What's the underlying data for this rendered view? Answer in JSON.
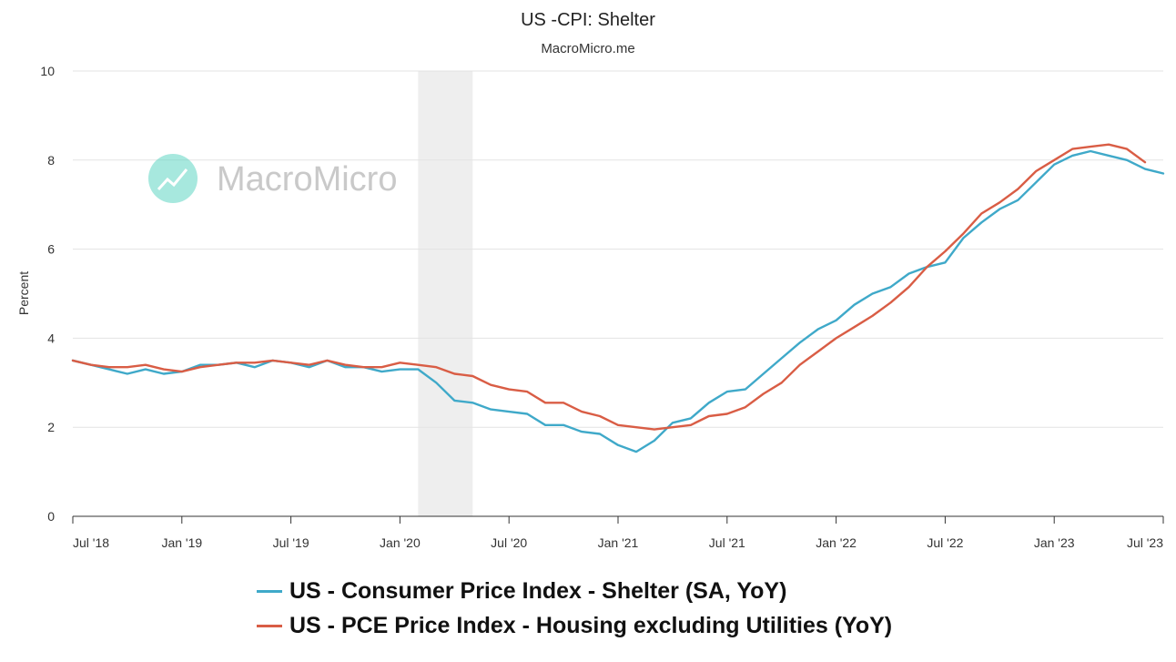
{
  "header": {
    "title": "US -CPI: Shelter",
    "subtitle": "MacroMicro.me"
  },
  "watermark": {
    "text": "MacroMicro",
    "icon": "chart-line-icon",
    "color": "#c9c9c9",
    "icon_color": "#5ed6c2"
  },
  "chart_data": {
    "type": "line",
    "title": "US -CPI: Shelter",
    "subtitle": "MacroMicro.me",
    "xlabel": "",
    "ylabel": "Percent",
    "ylim": [
      0,
      10
    ],
    "yticks": [
      0,
      2,
      4,
      6,
      8,
      10
    ],
    "xlim": [
      "2018-07",
      "2023-07"
    ],
    "xticks": [
      {
        "date": "2018-07",
        "label": "Jul '18"
      },
      {
        "date": "2019-01",
        "label": "Jan '19"
      },
      {
        "date": "2019-07",
        "label": "Jul '19"
      },
      {
        "date": "2020-01",
        "label": "Jan '20"
      },
      {
        "date": "2020-07",
        "label": "Jul '20"
      },
      {
        "date": "2021-01",
        "label": "Jan '21"
      },
      {
        "date": "2021-07",
        "label": "Jul '21"
      },
      {
        "date": "2022-01",
        "label": "Jan '22"
      },
      {
        "date": "2022-07",
        "label": "Jul '22"
      },
      {
        "date": "2023-01",
        "label": "Jan '23"
      },
      {
        "date": "2023-07",
        "label": "Jul '23"
      }
    ],
    "grid": true,
    "legend_position": "bottom",
    "shaded_ranges": [
      {
        "start": "2020-02",
        "end": "2020-05",
        "color": "#eeeeee"
      }
    ],
    "series": [
      {
        "name": "US - Consumer Price Index - Shelter (SA, YoY)",
        "color": "#3fa9c9",
        "x": [
          "2018-07",
          "2018-08",
          "2018-09",
          "2018-10",
          "2018-11",
          "2018-12",
          "2019-01",
          "2019-02",
          "2019-03",
          "2019-04",
          "2019-05",
          "2019-06",
          "2019-07",
          "2019-08",
          "2019-09",
          "2019-10",
          "2019-11",
          "2019-12",
          "2020-01",
          "2020-02",
          "2020-03",
          "2020-04",
          "2020-05",
          "2020-06",
          "2020-07",
          "2020-08",
          "2020-09",
          "2020-10",
          "2020-11",
          "2020-12",
          "2021-01",
          "2021-02",
          "2021-03",
          "2021-04",
          "2021-05",
          "2021-06",
          "2021-07",
          "2021-08",
          "2021-09",
          "2021-10",
          "2021-11",
          "2021-12",
          "2022-01",
          "2022-02",
          "2022-03",
          "2022-04",
          "2022-05",
          "2022-06",
          "2022-07",
          "2022-08",
          "2022-09",
          "2022-10",
          "2022-11",
          "2022-12",
          "2023-01",
          "2023-02",
          "2023-03",
          "2023-04",
          "2023-05",
          "2023-06",
          "2023-07"
        ],
        "values": [
          3.5,
          3.4,
          3.3,
          3.2,
          3.3,
          3.2,
          3.25,
          3.4,
          3.4,
          3.45,
          3.35,
          3.5,
          3.45,
          3.35,
          3.5,
          3.35,
          3.35,
          3.25,
          3.3,
          3.3,
          3.0,
          2.6,
          2.55,
          2.4,
          2.35,
          2.3,
          2.05,
          2.05,
          1.9,
          1.85,
          1.6,
          1.45,
          1.7,
          2.1,
          2.2,
          2.55,
          2.8,
          2.85,
          3.2,
          3.55,
          3.9,
          4.2,
          4.4,
          4.75,
          5.0,
          5.15,
          5.45,
          5.6,
          5.7,
          6.25,
          6.6,
          6.9,
          7.1,
          7.5,
          7.9,
          8.1,
          8.2,
          8.1,
          8.0,
          7.8,
          7.7
        ]
      },
      {
        "name": "US - PCE Price Index - Housing excluding Utilities (YoY)",
        "color": "#d95d45",
        "x": [
          "2018-07",
          "2018-08",
          "2018-09",
          "2018-10",
          "2018-11",
          "2018-12",
          "2019-01",
          "2019-02",
          "2019-03",
          "2019-04",
          "2019-05",
          "2019-06",
          "2019-07",
          "2019-08",
          "2019-09",
          "2019-10",
          "2019-11",
          "2019-12",
          "2020-01",
          "2020-02",
          "2020-03",
          "2020-04",
          "2020-05",
          "2020-06",
          "2020-07",
          "2020-08",
          "2020-09",
          "2020-10",
          "2020-11",
          "2020-12",
          "2021-01",
          "2021-02",
          "2021-03",
          "2021-04",
          "2021-05",
          "2021-06",
          "2021-07",
          "2021-08",
          "2021-09",
          "2021-10",
          "2021-11",
          "2021-12",
          "2022-01",
          "2022-02",
          "2022-03",
          "2022-04",
          "2022-05",
          "2022-06",
          "2022-07",
          "2022-08",
          "2022-09",
          "2022-10",
          "2022-11",
          "2022-12",
          "2023-01",
          "2023-02",
          "2023-03",
          "2023-04",
          "2023-05",
          "2023-06"
        ],
        "values": [
          3.5,
          3.4,
          3.35,
          3.35,
          3.4,
          3.3,
          3.25,
          3.35,
          3.4,
          3.45,
          3.45,
          3.5,
          3.45,
          3.4,
          3.5,
          3.4,
          3.35,
          3.35,
          3.45,
          3.4,
          3.35,
          3.2,
          3.15,
          2.95,
          2.85,
          2.8,
          2.55,
          2.55,
          2.35,
          2.25,
          2.05,
          2.0,
          1.95,
          2.0,
          2.05,
          2.25,
          2.3,
          2.45,
          2.75,
          3.0,
          3.4,
          3.7,
          4.0,
          4.25,
          4.5,
          4.8,
          5.15,
          5.6,
          5.95,
          6.35,
          6.8,
          7.05,
          7.35,
          7.75,
          8.0,
          8.25,
          8.3,
          8.35,
          8.25,
          7.95
        ]
      }
    ]
  }
}
